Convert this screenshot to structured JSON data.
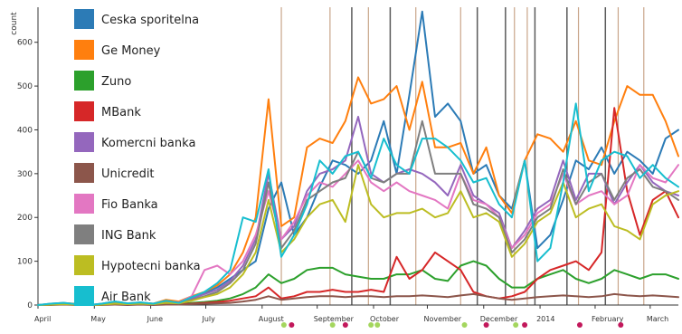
{
  "colors": {
    "event_line_tan": "#c9a58a",
    "event_line_gray": "#5a5a5a",
    "marker_green": "#a4d65e",
    "marker_red": "#c2185b",
    "axis": "#333333"
  },
  "chart_data": {
    "type": "line",
    "title": "",
    "xlabel": "",
    "ylabel": "count",
    "ylim": [
      0,
      680
    ],
    "yticks": [
      0,
      100,
      200,
      300,
      400,
      500,
      600
    ],
    "legend_position": "top-left",
    "grid": false,
    "x": [
      0,
      1,
      2,
      3,
      4,
      5,
      6,
      7,
      8,
      9,
      10,
      11,
      12,
      13,
      14,
      15,
      16,
      17,
      18,
      19,
      20,
      21,
      22,
      23,
      24,
      25,
      26,
      27,
      28,
      29,
      30,
      31,
      32,
      33,
      34,
      35,
      36,
      37,
      38,
      39,
      40,
      41,
      42,
      43,
      44,
      45,
      46,
      47,
      48,
      49,
      50
    ],
    "month_labels": [
      {
        "label": "April",
        "index": 0
      },
      {
        "label": "May",
        "index": 4.4
      },
      {
        "label": "June",
        "index": 8.8
      },
      {
        "label": "July",
        "index": 13.1
      },
      {
        "label": "August",
        "index": 17.5
      },
      {
        "label": "September",
        "index": 21.8
      },
      {
        "label": "October",
        "index": 26.2
      },
      {
        "label": "November",
        "index": 30.4
      },
      {
        "label": "December",
        "index": 34.8
      },
      {
        "label": "2014",
        "index": 39.2
      },
      {
        "label": "February",
        "index": 43.5
      },
      {
        "label": "March",
        "index": 47.8
      }
    ],
    "series": [
      {
        "name": "Ceska sporitelna",
        "color": "#2c7bb6",
        "values": [
          0,
          3,
          5,
          2,
          0,
          3,
          8,
          4,
          6,
          3,
          10,
          5,
          18,
          28,
          40,
          60,
          80,
          100,
          220,
          280,
          160,
          200,
          270,
          330,
          320,
          300,
          330,
          420,
          300,
          480,
          670,
          430,
          460,
          420,
          300,
          320,
          250,
          220,
          330,
          130,
          160,
          240,
          330,
          310,
          360,
          300,
          350,
          330,
          300,
          380,
          400
        ]
      },
      {
        "name": "Ge Money",
        "color": "#ff7f0e",
        "values": [
          0,
          2,
          4,
          3,
          0,
          2,
          6,
          3,
          5,
          3,
          12,
          8,
          20,
          30,
          45,
          70,
          120,
          200,
          470,
          180,
          200,
          360,
          380,
          370,
          420,
          520,
          460,
          470,
          500,
          400,
          510,
          360,
          360,
          370,
          300,
          360,
          250,
          210,
          330,
          390,
          380,
          350,
          420,
          330,
          320,
          420,
          500,
          480,
          480,
          420,
          340
        ]
      },
      {
        "name": "Zuno",
        "color": "#2ca02c",
        "values": [
          0,
          1,
          1,
          1,
          0,
          1,
          2,
          1,
          2,
          1,
          3,
          2,
          5,
          7,
          10,
          15,
          25,
          40,
          70,
          50,
          60,
          80,
          85,
          85,
          70,
          65,
          60,
          60,
          70,
          70,
          80,
          60,
          55,
          90,
          100,
          90,
          60,
          40,
          40,
          60,
          70,
          80,
          60,
          50,
          60,
          80,
          70,
          60,
          70,
          70,
          60
        ]
      },
      {
        "name": "MBank",
        "color": "#d62728",
        "values": [
          0,
          1,
          1,
          1,
          0,
          1,
          2,
          1,
          2,
          1,
          2,
          2,
          3,
          5,
          7,
          10,
          15,
          20,
          40,
          15,
          20,
          30,
          30,
          35,
          30,
          30,
          35,
          30,
          110,
          60,
          80,
          120,
          100,
          80,
          30,
          20,
          15,
          20,
          30,
          60,
          80,
          90,
          100,
          80,
          120,
          450,
          260,
          160,
          240,
          260,
          200
        ]
      },
      {
        "name": "Komercni banka",
        "color": "#9467bd",
        "values": [
          0,
          2,
          3,
          2,
          0,
          2,
          5,
          3,
          4,
          2,
          8,
          6,
          15,
          25,
          35,
          55,
          90,
          150,
          300,
          150,
          180,
          260,
          300,
          310,
          330,
          430,
          300,
          280,
          300,
          310,
          300,
          280,
          250,
          320,
          250,
          230,
          210,
          130,
          170,
          220,
          240,
          330,
          240,
          300,
          300,
          230,
          280,
          320,
          280,
          260,
          250
        ]
      },
      {
        "name": "Unicredit",
        "color": "#8c564b",
        "values": [
          0,
          0,
          1,
          0,
          0,
          0,
          1,
          0,
          1,
          0,
          1,
          1,
          2,
          3,
          4,
          5,
          8,
          12,
          20,
          12,
          15,
          18,
          20,
          20,
          18,
          20,
          20,
          18,
          20,
          20,
          22,
          20,
          18,
          22,
          25,
          20,
          15,
          12,
          15,
          18,
          20,
          22,
          20,
          18,
          20,
          25,
          22,
          20,
          22,
          20,
          18
        ]
      },
      {
        "name": "Fio Banka",
        "color": "#e377c2",
        "values": [
          0,
          2,
          3,
          2,
          0,
          2,
          5,
          3,
          4,
          2,
          8,
          6,
          20,
          80,
          90,
          70,
          100,
          160,
          260,
          150,
          190,
          250,
          280,
          270,
          300,
          330,
          280,
          260,
          280,
          260,
          250,
          240,
          220,
          300,
          240,
          230,
          200,
          130,
          160,
          210,
          230,
          300,
          230,
          250,
          260,
          230,
          250,
          320,
          290,
          280,
          320
        ]
      },
      {
        "name": "ING Bank",
        "color": "#7f7f7f",
        "values": [
          0,
          1,
          2,
          1,
          0,
          1,
          4,
          2,
          3,
          2,
          6,
          4,
          12,
          20,
          30,
          50,
          80,
          140,
          280,
          130,
          170,
          240,
          260,
          280,
          290,
          350,
          290,
          280,
          300,
          300,
          420,
          300,
          300,
          300,
          230,
          220,
          200,
          120,
          150,
          200,
          220,
          310,
          230,
          280,
          300,
          240,
          290,
          310,
          270,
          260,
          240
        ]
      },
      {
        "name": "Hypotecni banka",
        "color": "#bcbd22",
        "values": [
          0,
          1,
          2,
          1,
          0,
          1,
          3,
          2,
          3,
          2,
          5,
          4,
          10,
          18,
          25,
          40,
          70,
          120,
          240,
          120,
          150,
          200,
          230,
          240,
          190,
          320,
          230,
          200,
          210,
          210,
          220,
          200,
          210,
          260,
          200,
          210,
          190,
          110,
          140,
          190,
          210,
          280,
          200,
          220,
          230,
          180,
          170,
          150,
          230,
          250,
          260
        ]
      },
      {
        "name": "Air Bank",
        "color": "#17becf",
        "values": [
          0,
          3,
          5,
          2,
          0,
          3,
          8,
          4,
          6,
          3,
          10,
          5,
          18,
          30,
          50,
          80,
          200,
          190,
          310,
          110,
          160,
          230,
          330,
          300,
          340,
          350,
          290,
          380,
          320,
          300,
          380,
          380,
          360,
          330,
          280,
          290,
          230,
          200,
          330,
          100,
          130,
          280,
          460,
          260,
          330,
          350,
          340,
          290,
          320,
          290,
          270
        ]
      }
    ],
    "legend": [
      "Ceska sporitelna",
      "Ge Money",
      "Zuno",
      "MBank",
      "Komercni banka",
      "Unicredit",
      "Fio Banka",
      "ING Bank",
      "Hypotecni banka",
      "Air Bank"
    ],
    "event_lines": [
      {
        "index": 19.0,
        "kind": "tan"
      },
      {
        "index": 22.8,
        "kind": "tan"
      },
      {
        "index": 25.8,
        "kind": "tan"
      },
      {
        "index": 29.5,
        "kind": "tan"
      },
      {
        "index": 33.0,
        "kind": "tan"
      },
      {
        "index": 37.2,
        "kind": "tan"
      },
      {
        "index": 38.2,
        "kind": "tan"
      },
      {
        "index": 42.2,
        "kind": "tan"
      },
      {
        "index": 45.3,
        "kind": "tan"
      },
      {
        "index": 47.3,
        "kind": "tan"
      },
      {
        "index": 24.5,
        "kind": "gray"
      },
      {
        "index": 27.5,
        "kind": "gray"
      },
      {
        "index": 34.3,
        "kind": "gray"
      },
      {
        "index": 36.5,
        "kind": "gray"
      },
      {
        "index": 38.8,
        "kind": "gray"
      },
      {
        "index": 41.3,
        "kind": "gray"
      },
      {
        "index": 44.3,
        "kind": "gray"
      }
    ],
    "markers": [
      {
        "index": 19.2,
        "kind": "green"
      },
      {
        "index": 19.8,
        "kind": "red"
      },
      {
        "index": 23.0,
        "kind": "green"
      },
      {
        "index": 24.0,
        "kind": "red"
      },
      {
        "index": 26.0,
        "kind": "green"
      },
      {
        "index": 26.5,
        "kind": "green"
      },
      {
        "index": 33.3,
        "kind": "green"
      },
      {
        "index": 35.0,
        "kind": "red"
      },
      {
        "index": 37.3,
        "kind": "green"
      },
      {
        "index": 38.0,
        "kind": "red"
      },
      {
        "index": 42.3,
        "kind": "red"
      },
      {
        "index": 45.5,
        "kind": "red"
      }
    ]
  }
}
